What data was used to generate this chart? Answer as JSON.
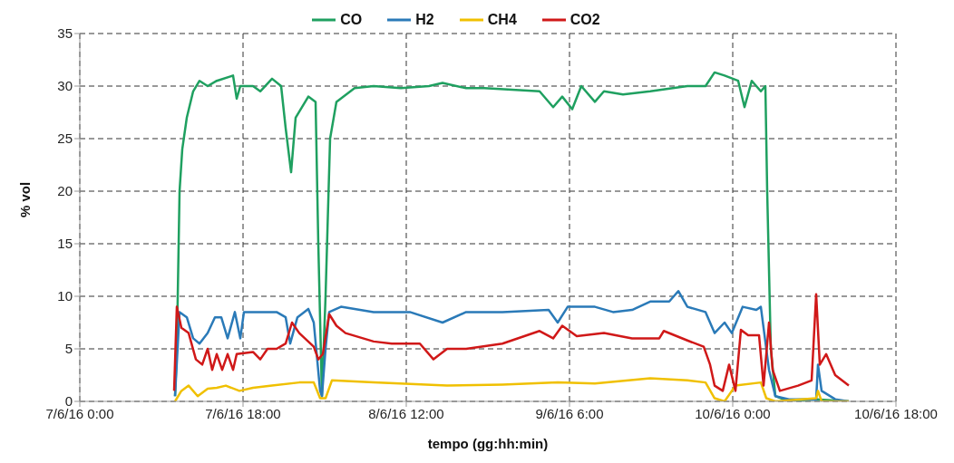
{
  "chart_data": {
    "type": "line",
    "xlabel": "tempo (gg:hh:min)",
    "ylabel": "% vol",
    "xlim": [
      "--06-07T00:00",
      "--06-10T18:00"
    ],
    "xticks": [
      {
        "value": "--06-07T00:00",
        "label": "7/6/16 0:00"
      },
      {
        "value": "--06-07T18:00",
        "label": "7/6/16 18:00"
      },
      {
        "value": "--06-08T12:00",
        "label": "8/6/16 12:00"
      },
      {
        "value": "--06-09T06:00",
        "label": "9/6/16 6:00"
      },
      {
        "value": "--06-10T00:00",
        "label": "10/6/16 0:00"
      },
      {
        "value": "--06-10T18:00",
        "label": "10/6/16 18:00"
      }
    ],
    "ylim": [
      0,
      35
    ],
    "yticks": [
      0,
      5,
      10,
      15,
      20,
      25,
      30,
      35
    ],
    "grid": true,
    "legend": "top",
    "line_style": "solid",
    "series": [
      {
        "name": "CO",
        "color": "#1fa060",
        "x": [
          "--06-07T10:30",
          "--06-07T10:42",
          "--06-07T11:00",
          "--06-07T11:18",
          "--06-07T11:48",
          "--06-07T12:30",
          "--06-07T13:12",
          "--06-07T14:06",
          "--06-07T15:06",
          "--06-07T16:54",
          "--06-07T17:18",
          "--06-07T17:42",
          "--06-07T19:06",
          "--06-07T19:54",
          "--06-07T21:12",
          "--06-07T22:12",
          "--06-07T22:42",
          "--06-07T23:18",
          "--06-07T23:48",
          "--06-08T01:12",
          "--06-08T02:00",
          "--06-08T02:18",
          "--06-08T02:42",
          "--06-08T03:06",
          "--06-08T03:36",
          "--06-08T04:18",
          "--06-08T06:18",
          "--06-08T08:24",
          "--06-08T11:24",
          "--06-08T14:30",
          "--06-08T16:00",
          "--06-08T18:36",
          "--06-08T20:36",
          "--06-09T02:42",
          "--06-09T04:12",
          "--06-09T05:12",
          "--06-09T06:18",
          "--06-09T07:18",
          "--06-09T08:48",
          "--06-09T09:48",
          "--06-09T11:54",
          "--06-09T14:54",
          "--06-09T19:00",
          "--06-09T21:00",
          "--06-09T22:00",
          "--06-09T23:06",
          "--06-10T00:36",
          "--06-10T01:18",
          "--06-10T02:06",
          "--06-10T03:06",
          "--06-10T03:36",
          "--06-10T03:48",
          "--06-10T04:12",
          "--06-10T04:42",
          "--06-10T06:12",
          "--06-10T09:12",
          "--06-10T12:48"
        ],
        "values": [
          0.5,
          5,
          20,
          24,
          27,
          29.5,
          30.5,
          30,
          30.5,
          31,
          28.8,
          30,
          30,
          29.5,
          30.7,
          30,
          26,
          21.8,
          27,
          29,
          28.5,
          15,
          0.5,
          10,
          25,
          28.5,
          29.8,
          30,
          29.8,
          30,
          30.3,
          29.8,
          29.8,
          29.5,
          28,
          29,
          27.8,
          30,
          28.5,
          29.5,
          29.2,
          29.5,
          30,
          30,
          31.3,
          31,
          30.5,
          28,
          30.5,
          29.5,
          30,
          20,
          5,
          0.5,
          0,
          0.2,
          0
        ]
      },
      {
        "name": "H2",
        "color": "#2a7ab8",
        "x": [
          "--06-07T10:30",
          "--06-07T11:00",
          "--06-07T11:48",
          "--06-07T12:30",
          "--06-07T13:12",
          "--06-07T14:06",
          "--06-07T14:54",
          "--06-07T15:36",
          "--06-07T16:18",
          "--06-07T17:06",
          "--06-07T17:42",
          "--06-07T18:06",
          "--06-07T20:12",
          "--06-07T21:42",
          "--06-07T22:42",
          "--06-07T23:12",
          "--06-08T00:00",
          "--06-08T01:12",
          "--06-08T01:48",
          "--06-08T02:30",
          "--06-08T02:42",
          "--06-08T03:06",
          "--06-08T03:30",
          "--06-08T04:48",
          "--06-08T08:24",
          "--06-08T12:24",
          "--06-08T16:00",
          "--06-08T18:36",
          "--06-08T22:36",
          "--06-09T03:42",
          "--06-09T04:42",
          "--06-09T05:48",
          "--06-09T08:48",
          "--06-09T10:48",
          "--06-09T12:54",
          "--06-09T14:54",
          "--06-09T17:00",
          "--06-09T18:00",
          "--06-09T19:00",
          "--06-09T21:00",
          "--06-09T22:00",
          "--06-09T23:06",
          "--06-09T23:54",
          "--06-10T01:06",
          "--06-10T02:36",
          "--06-10T03:06",
          "--06-10T04:00",
          "--06-10T04:42",
          "--06-10T06:12",
          "--06-10T09:12",
          "--06-10T09:24",
          "--06-10T09:48",
          "--06-10T11:18",
          "--06-10T12:48"
        ],
        "values": [
          0.5,
          8.5,
          8,
          6,
          5.5,
          6.5,
          8,
          8,
          6,
          8.5,
          6,
          8.5,
          8.5,
          8.5,
          8,
          5.5,
          8,
          8.8,
          7.5,
          1,
          0.5,
          5,
          8.5,
          9,
          8.5,
          8.5,
          7.5,
          8.5,
          8.5,
          8.7,
          7.5,
          9,
          9,
          8.5,
          8.7,
          9.5,
          9.5,
          10.5,
          9,
          8.5,
          6.5,
          7.5,
          6.5,
          9,
          8.7,
          9,
          3,
          0.5,
          0.2,
          0.2,
          3.5,
          1,
          0.2,
          0
        ]
      },
      {
        "name": "CH4",
        "color": "#f0c000",
        "x": [
          "--06-07T10:30",
          "--06-07T11:12",
          "--06-07T12:00",
          "--06-07T13:00",
          "--06-07T14:06",
          "--06-07T15:06",
          "--06-07T16:06",
          "--06-07T17:36",
          "--06-07T19:06",
          "--06-07T21:12",
          "--06-08T00:12",
          "--06-08T01:48",
          "--06-08T02:30",
          "--06-08T03:06",
          "--06-08T03:48",
          "--06-08T08:24",
          "--06-08T16:30",
          "--06-08T22:36",
          "--06-09T04:42",
          "--06-09T08:48",
          "--06-09T14:54",
          "--06-09T19:00",
          "--06-09T21:00",
          "--06-09T22:00",
          "--06-09T23:06",
          "--06-10T00:18",
          "--06-10T03:06",
          "--06-10T03:42",
          "--06-10T04:42",
          "--06-10T09:12",
          "--06-10T09:24",
          "--06-10T09:48",
          "--06-10T12:48"
        ],
        "values": [
          0,
          1,
          1.5,
          0.5,
          1.2,
          1.3,
          1.5,
          1,
          1.3,
          1.5,
          1.8,
          1.8,
          0.3,
          0.3,
          2,
          1.8,
          1.5,
          1.6,
          1.8,
          1.7,
          2.2,
          2,
          1.8,
          0.3,
          0,
          1.5,
          1.8,
          0.3,
          0,
          0.3,
          1,
          0,
          0
        ]
      },
      {
        "name": "CO2",
        "color": "#d01818",
        "x": [
          "--06-07T10:24",
          "--06-07T10:42",
          "--06-07T11:12",
          "--06-07T12:00",
          "--06-07T12:48",
          "--06-07T13:30",
          "--06-07T14:06",
          "--06-07T14:36",
          "--06-07T15:06",
          "--06-07T15:42",
          "--06-07T16:18",
          "--06-07T16:54",
          "--06-07T17:18",
          "--06-07T19:06",
          "--06-07T19:54",
          "--06-07T20:42",
          "--06-07T21:42",
          "--06-07T22:42",
          "--06-07T23:24",
          "--06-08T00:12",
          "--06-08T01:48",
          "--06-08T02:18",
          "--06-08T02:48",
          "--06-08T03:30",
          "--06-08T04:18",
          "--06-08T05:18",
          "--06-08T08:24",
          "--06-08T10:24",
          "--06-08T13:30",
          "--06-08T15:00",
          "--06-08T16:30",
          "--06-08T18:36",
          "--06-08T22:36",
          "--06-09T02:42",
          "--06-09T04:12",
          "--06-09T05:12",
          "--06-09T06:48",
          "--06-09T09:48",
          "--06-09T12:54",
          "--06-09T15:54",
          "--06-09T16:24",
          "--06-09T19:00",
          "--06-09T20:48",
          "--06-09T21:30",
          "--06-09T22:00",
          "--06-09T22:54",
          "--06-09T23:36",
          "--06-10T00:18",
          "--06-10T00:54",
          "--06-10T01:42",
          "--06-10T02:54",
          "--06-10T03:24",
          "--06-10T04:00",
          "--06-10T04:24",
          "--06-10T05:12",
          "--06-10T07:12",
          "--06-10T08:42",
          "--06-10T09:12",
          "--06-10T09:36",
          "--06-10T10:18",
          "--06-10T11:18",
          "--06-10T12:48"
        ],
        "values": [
          1,
          9,
          7,
          6.5,
          4,
          3.5,
          5,
          3,
          4.5,
          3,
          4.5,
          3,
          4.5,
          4.7,
          4,
          5,
          5,
          5.5,
          7.5,
          6.5,
          5.2,
          4,
          4.5,
          8.3,
          7.2,
          6.5,
          5.7,
          5.5,
          5.5,
          4,
          5,
          5,
          5.5,
          6.7,
          6,
          7.2,
          6.2,
          6.5,
          6,
          6,
          6.7,
          5.8,
          5.2,
          3.5,
          1.5,
          1,
          3.5,
          1,
          6.8,
          6.3,
          6.3,
          1.5,
          7.5,
          3,
          1,
          1.5,
          2,
          10.2,
          3.5,
          4.5,
          2.5,
          1.5
        ]
      }
    ]
  }
}
